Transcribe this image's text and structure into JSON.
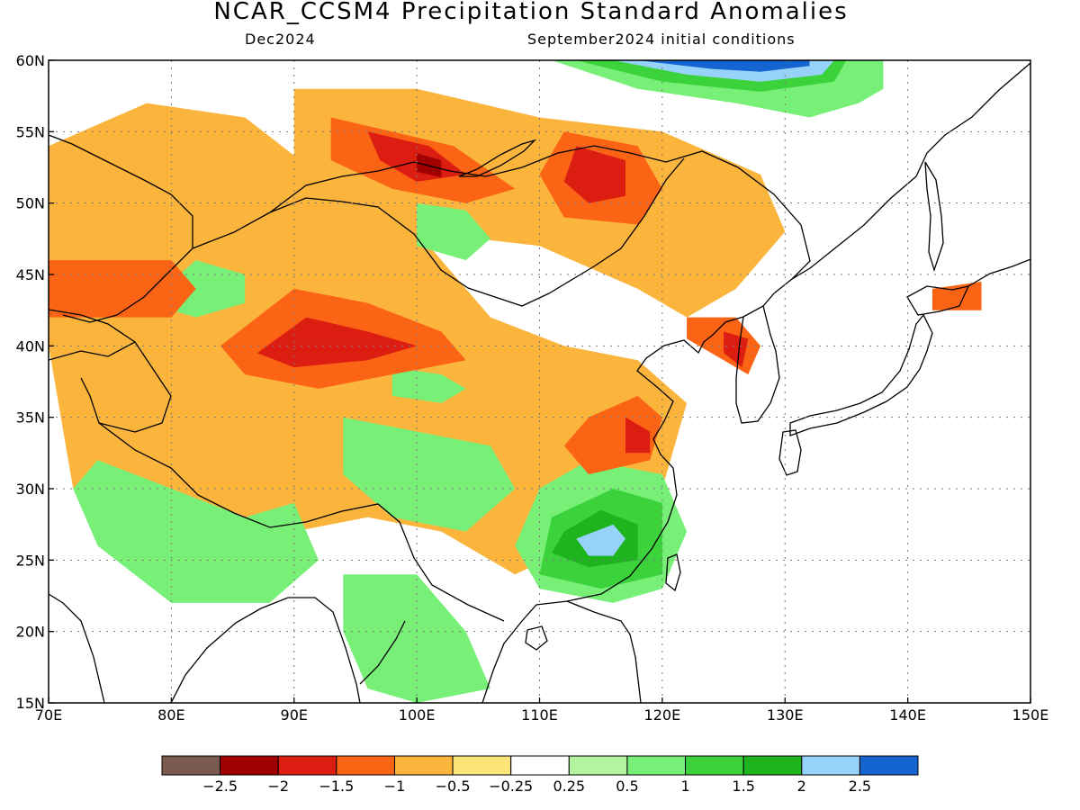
{
  "title": "NCAR_CCSM4 Precipitation Standard Anomalies",
  "subtitle_left": "Dec2024",
  "subtitle_right": "September2024 initial conditions",
  "map": {
    "lon_range": [
      70,
      150
    ],
    "lat_range": [
      15,
      60
    ],
    "lon_ticks": [
      70,
      80,
      90,
      100,
      110,
      120,
      130,
      140,
      150
    ],
    "lon_labels": [
      "70E",
      "80E",
      "90E",
      "100E",
      "110E",
      "120E",
      "130E",
      "140E",
      "150E"
    ],
    "lat_ticks": [
      15,
      20,
      25,
      30,
      35,
      40,
      45,
      50,
      55,
      60
    ],
    "lat_labels": [
      "15N",
      "20N",
      "25N",
      "30N",
      "35N",
      "40N",
      "45N",
      "50N",
      "55N",
      "60N"
    ],
    "grid": true
  },
  "colorbar": {
    "labels": [
      "−2.5",
      "−2",
      "−1.5",
      "−1",
      "−0.5",
      "−0.25",
      "0.25",
      "0.5",
      "1",
      "1.5",
      "2",
      "2.5"
    ],
    "colors": [
      "#7a5a4e",
      "#a00000",
      "#dc1e12",
      "#fb6414",
      "#fbb43c",
      "#fde478",
      "#ffffff",
      "#b4f4a0",
      "#78f078",
      "#3cd23c",
      "#1eb41e",
      "#96d2fa",
      "#1464d2"
    ]
  },
  "anomaly_regions": [
    {
      "level": -1.0,
      "pts": [
        [
          90,
          58
        ],
        [
          100,
          58
        ],
        [
          110,
          56
        ],
        [
          120,
          55
        ],
        [
          128,
          52
        ],
        [
          130,
          48
        ],
        [
          126,
          44
        ],
        [
          122,
          42
        ],
        [
          118,
          44
        ],
        [
          110,
          47
        ],
        [
          100,
          48
        ],
        [
          90,
          50
        ]
      ]
    },
    {
      "level": -1.0,
      "pts": [
        [
          70,
          54
        ],
        [
          78,
          57
        ],
        [
          86,
          56
        ],
        [
          92,
          52
        ],
        [
          100,
          48
        ],
        [
          106,
          42
        ],
        [
          112,
          40
        ],
        [
          118,
          39
        ],
        [
          122,
          36
        ],
        [
          120,
          30
        ],
        [
          113,
          26
        ],
        [
          108,
          24
        ],
        [
          102,
          27
        ],
        [
          96,
          28
        ],
        [
          90,
          27
        ],
        [
          84,
          27
        ],
        [
          78,
          26
        ],
        [
          72,
          30
        ],
        [
          70,
          40
        ]
      ]
    },
    {
      "level": 0.5,
      "pts": [
        [
          74,
          32
        ],
        [
          80,
          30
        ],
        [
          86,
          28
        ],
        [
          90,
          29
        ],
        [
          92,
          25
        ],
        [
          88,
          22
        ],
        [
          80,
          22
        ],
        [
          74,
          26
        ],
        [
          72,
          30
        ]
      ]
    },
    {
      "level": 0.5,
      "pts": [
        [
          94,
          35
        ],
        [
          100,
          34
        ],
        [
          106,
          33
        ],
        [
          108,
          30
        ],
        [
          104,
          27
        ],
        [
          98,
          28
        ],
        [
          94,
          31
        ]
      ]
    },
    {
      "level": 0.5,
      "pts": [
        [
          110,
          30
        ],
        [
          114,
          32
        ],
        [
          120,
          31
        ],
        [
          122,
          27
        ],
        [
          120,
          23
        ],
        [
          116,
          22
        ],
        [
          110,
          23
        ],
        [
          108,
          26
        ]
      ]
    },
    {
      "level": 0.5,
      "pts": [
        [
          94,
          24
        ],
        [
          100,
          24
        ],
        [
          104,
          20
        ],
        [
          106,
          16
        ],
        [
          100,
          15
        ],
        [
          96,
          16
        ],
        [
          94,
          20
        ]
      ]
    },
    {
      "level": 1.0,
      "pts": [
        [
          111,
          28
        ],
        [
          116,
          30
        ],
        [
          120,
          29
        ],
        [
          120,
          24
        ],
        [
          115,
          23
        ],
        [
          110,
          24
        ]
      ]
    },
    {
      "level": 1.5,
      "pts": [
        [
          112,
          27
        ],
        [
          115,
          28.5
        ],
        [
          118,
          27.5
        ],
        [
          118,
          25
        ],
        [
          114,
          24.5
        ],
        [
          111,
          25.5
        ]
      ]
    },
    {
      "level": 2.0,
      "pts": [
        [
          113,
          26.5
        ],
        [
          116,
          27.5
        ],
        [
          117,
          26.5
        ],
        [
          116,
          25.3
        ],
        [
          114,
          25.3
        ]
      ]
    },
    {
      "level": 0.5,
      "pts": [
        [
          111,
          60
        ],
        [
          118,
          58
        ],
        [
          126,
          57
        ],
        [
          132,
          56
        ],
        [
          136,
          57
        ],
        [
          138,
          58
        ],
        [
          138,
          60
        ]
      ]
    },
    {
      "level": 1.0,
      "pts": [
        [
          113,
          60
        ],
        [
          120,
          58.5
        ],
        [
          128,
          57.8
        ],
        [
          134,
          58.5
        ],
        [
          135,
          60
        ]
      ]
    },
    {
      "level": 2.0,
      "pts": [
        [
          116,
          60
        ],
        [
          122,
          59
        ],
        [
          128,
          58.5
        ],
        [
          133,
          59
        ],
        [
          134,
          60
        ]
      ]
    },
    {
      "level": 2.5,
      "pts": [
        [
          118,
          60
        ],
        [
          124,
          59.4
        ],
        [
          128,
          59.2
        ],
        [
          132,
          59.6
        ],
        [
          132,
          60
        ]
      ]
    },
    {
      "level": 0.5,
      "pts": [
        [
          100,
          50
        ],
        [
          104,
          49.5
        ],
        [
          106,
          47.5
        ],
        [
          104,
          46
        ],
        [
          100,
          47
        ]
      ]
    },
    {
      "level": 0.5,
      "pts": [
        [
          82,
          46
        ],
        [
          86,
          45
        ],
        [
          86,
          43
        ],
        [
          82,
          42
        ],
        [
          78,
          43
        ]
      ]
    },
    {
      "level": 0.5,
      "pts": [
        [
          98,
          38.5
        ],
        [
          102,
          38
        ],
        [
          104,
          37
        ],
        [
          102,
          36
        ],
        [
          98,
          36.5
        ]
      ]
    },
    {
      "level": -1.5,
      "pts": [
        [
          90,
          44
        ],
        [
          96,
          43
        ],
        [
          102,
          41
        ],
        [
          104,
          39
        ],
        [
          98,
          38
        ],
        [
          92,
          37
        ],
        [
          86,
          38
        ],
        [
          84,
          40
        ]
      ]
    },
    {
      "level": -2.0,
      "pts": [
        [
          91,
          42
        ],
        [
          96,
          41
        ],
        [
          100,
          40
        ],
        [
          96,
          39
        ],
        [
          90,
          38.5
        ],
        [
          87,
          39.5
        ]
      ]
    },
    {
      "level": -1.5,
      "pts": [
        [
          93,
          56
        ],
        [
          98,
          55
        ],
        [
          103,
          54
        ],
        [
          108,
          51
        ],
        [
          104,
          50
        ],
        [
          98,
          51
        ],
        [
          93,
          53
        ]
      ]
    },
    {
      "level": -2.0,
      "pts": [
        [
          96,
          55
        ],
        [
          101,
          54
        ],
        [
          104,
          52
        ],
        [
          100,
          51.5
        ],
        [
          97,
          53
        ]
      ]
    },
    {
      "level": -2.5,
      "pts": [
        [
          100,
          53.5
        ],
        [
          102,
          53
        ],
        [
          102,
          51.8
        ],
        [
          100,
          52.2
        ]
      ]
    },
    {
      "level": -1.5,
      "pts": [
        [
          112,
          55
        ],
        [
          118,
          54
        ],
        [
          120,
          51
        ],
        [
          118,
          48.5
        ],
        [
          112,
          49
        ],
        [
          110,
          52
        ]
      ]
    },
    {
      "level": -2.0,
      "pts": [
        [
          113,
          54
        ],
        [
          117,
          53
        ],
        [
          117,
          50.5
        ],
        [
          114,
          50
        ],
        [
          112,
          51.5
        ]
      ]
    },
    {
      "level": -1.5,
      "pts": [
        [
          70,
          46
        ],
        [
          80,
          46
        ],
        [
          82,
          44
        ],
        [
          80,
          42
        ],
        [
          70,
          42
        ]
      ]
    },
    {
      "level": -1.5,
      "pts": [
        [
          114,
          35
        ],
        [
          118,
          36.5
        ],
        [
          120,
          35
        ],
        [
          119,
          32
        ],
        [
          114,
          31
        ],
        [
          112,
          33
        ]
      ]
    },
    {
      "level": -2.0,
      "pts": [
        [
          117,
          35
        ],
        [
          119,
          34
        ],
        [
          119,
          32.5
        ],
        [
          117,
          32.5
        ]
      ]
    },
    {
      "level": -1.5,
      "pts": [
        [
          122,
          42
        ],
        [
          126,
          42
        ],
        [
          128,
          40
        ],
        [
          127,
          38
        ],
        [
          124,
          39.5
        ],
        [
          122,
          40.5
        ]
      ]
    },
    {
      "level": -2.0,
      "pts": [
        [
          125,
          41
        ],
        [
          127,
          40.5
        ],
        [
          126.5,
          38.5
        ],
        [
          125,
          39.5
        ]
      ]
    },
    {
      "level": -1.5,
      "pts": [
        [
          142,
          44
        ],
        [
          146,
          44.5
        ],
        [
          146,
          42.5
        ],
        [
          142,
          42.5
        ]
      ]
    }
  ]
}
